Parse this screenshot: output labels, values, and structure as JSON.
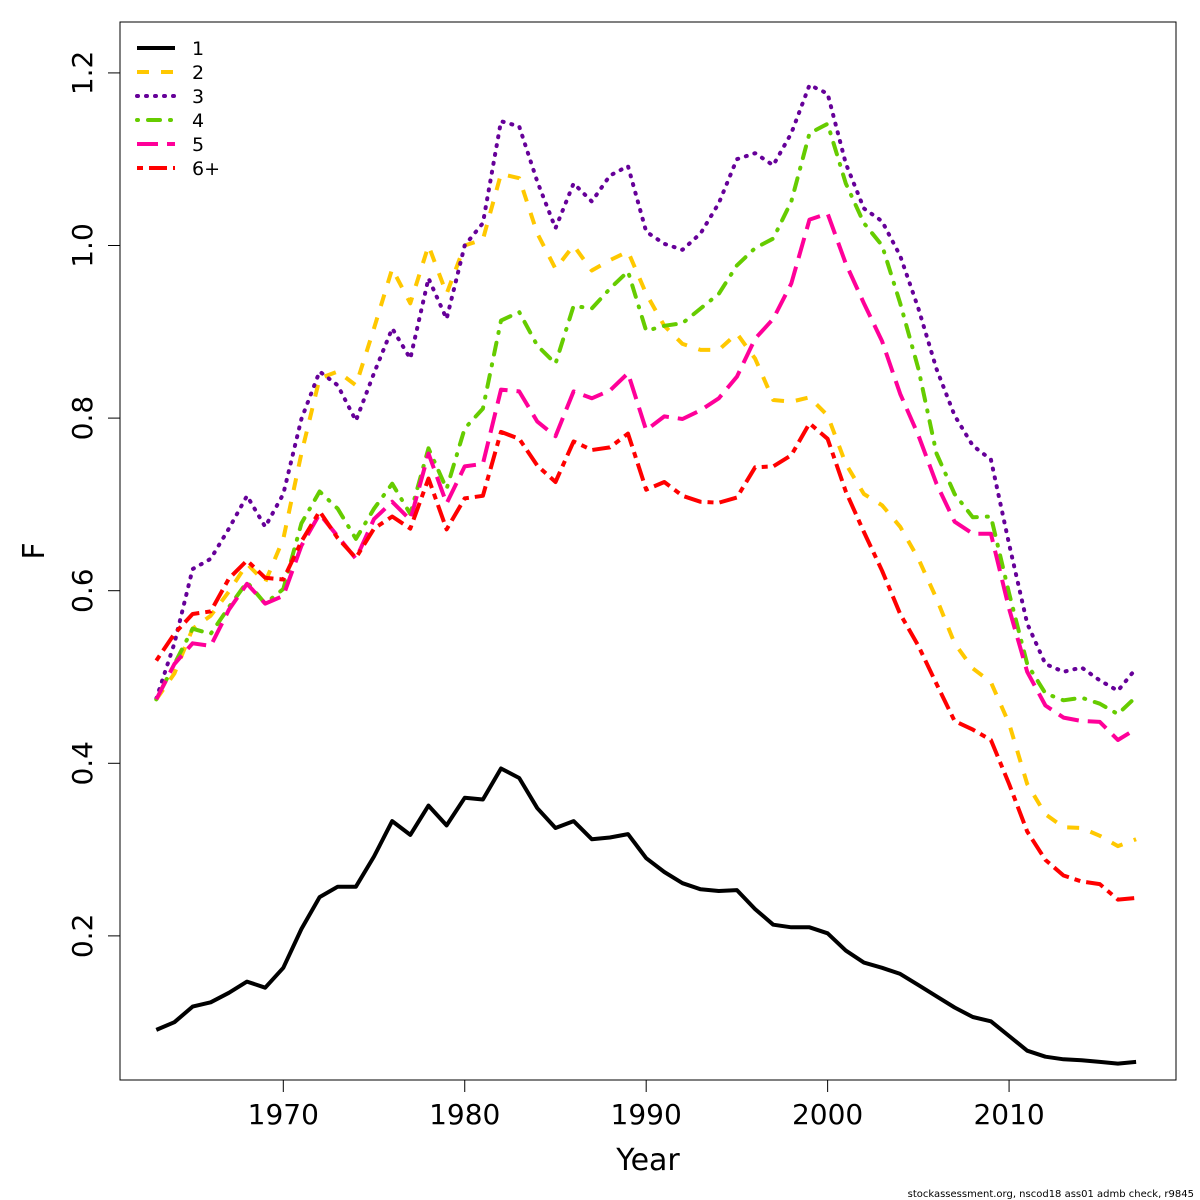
{
  "chart_data": {
    "type": "line",
    "title": "",
    "xlabel": "Year",
    "ylabel": "F",
    "xlim": [
      1961,
      2019.2
    ],
    "ylim": [
      0.033,
      1.259
    ],
    "xticks": [
      1970,
      1980,
      1990,
      2000,
      2010
    ],
    "yticks": [
      0.2,
      0.4,
      0.6,
      0.8,
      1.0,
      1.2
    ],
    "ytick_labels": [
      "0.2",
      "0.4",
      "0.6",
      "0.8",
      "1.0",
      "1.2"
    ],
    "legend_position": "top-left",
    "x_start": 1963,
    "series": [
      {
        "name": "1",
        "color": "#000000",
        "dash": "solid",
        "values": [
          0.091,
          0.1,
          0.118,
          0.123,
          0.134,
          0.147,
          0.14,
          0.163,
          0.208,
          0.245,
          0.257,
          0.257,
          0.292,
          0.333,
          0.317,
          0.351,
          0.328,
          0.36,
          0.358,
          0.394,
          0.383,
          0.348,
          0.325,
          0.333,
          0.312,
          0.314,
          0.318,
          0.29,
          0.274,
          0.261,
          0.254,
          0.252,
          0.253,
          0.231,
          0.213,
          0.21,
          0.21,
          0.203,
          0.183,
          0.169,
          0.163,
          0.156,
          0.143,
          0.13,
          0.117,
          0.106,
          0.101,
          0.084,
          0.067,
          0.06,
          0.057,
          0.056,
          0.054,
          0.052,
          0.054
        ]
      },
      {
        "name": "2",
        "color": "#FFC800",
        "dash": "dashed",
        "values": [
          0.474,
          0.504,
          0.556,
          0.571,
          0.599,
          0.631,
          0.61,
          0.66,
          0.759,
          0.846,
          0.854,
          0.838,
          0.904,
          0.973,
          0.933,
          1.0,
          0.944,
          1.0,
          1.007,
          1.083,
          1.078,
          1.014,
          0.973,
          1.0,
          0.971,
          0.983,
          0.993,
          0.944,
          0.907,
          0.886,
          0.879,
          0.879,
          0.898,
          0.869,
          0.821,
          0.819,
          0.824,
          0.803,
          0.747,
          0.712,
          0.699,
          0.674,
          0.637,
          0.591,
          0.539,
          0.51,
          0.494,
          0.446,
          0.376,
          0.341,
          0.326,
          0.325,
          0.316,
          0.304,
          0.312
        ]
      },
      {
        "name": "3",
        "color": "#660099",
        "dash": "dotted",
        "values": [
          0.475,
          0.539,
          0.625,
          0.637,
          0.672,
          0.71,
          0.674,
          0.712,
          0.799,
          0.854,
          0.838,
          0.797,
          0.852,
          0.904,
          0.869,
          0.962,
          0.915,
          1.0,
          1.026,
          1.144,
          1.138,
          1.074,
          1.02,
          1.072,
          1.051,
          1.081,
          1.092,
          1.016,
          1.002,
          0.995,
          1.014,
          1.049,
          1.1,
          1.107,
          1.093,
          1.13,
          1.186,
          1.176,
          1.095,
          1.043,
          1.028,
          0.988,
          0.927,
          0.857,
          0.803,
          0.768,
          0.752,
          0.654,
          0.562,
          0.515,
          0.506,
          0.511,
          0.496,
          0.484,
          0.51
        ]
      },
      {
        "name": "4",
        "color": "#66CC00",
        "dash": "dotdash",
        "values": [
          0.474,
          0.515,
          0.556,
          0.55,
          0.581,
          0.61,
          0.585,
          0.602,
          0.678,
          0.715,
          0.695,
          0.66,
          0.695,
          0.724,
          0.689,
          0.765,
          0.718,
          0.788,
          0.811,
          0.913,
          0.923,
          0.884,
          0.863,
          0.93,
          0.927,
          0.95,
          0.97,
          0.901,
          0.907,
          0.91,
          0.927,
          0.944,
          0.977,
          0.997,
          1.008,
          1.051,
          1.13,
          1.141,
          1.072,
          1.026,
          1.0,
          0.933,
          0.857,
          0.759,
          0.712,
          0.685,
          0.686,
          0.597,
          0.515,
          0.481,
          0.473,
          0.476,
          0.469,
          0.457,
          0.477
        ]
      },
      {
        "name": "5",
        "color": "#FF0099",
        "dash": "longdash",
        "values": [
          0.474,
          0.515,
          0.539,
          0.536,
          0.578,
          0.608,
          0.585,
          0.594,
          0.652,
          0.689,
          0.663,
          0.637,
          0.683,
          0.703,
          0.682,
          0.759,
          0.701,
          0.744,
          0.747,
          0.833,
          0.831,
          0.796,
          0.779,
          0.831,
          0.823,
          0.832,
          0.852,
          0.786,
          0.802,
          0.799,
          0.809,
          0.823,
          0.848,
          0.892,
          0.915,
          0.956,
          1.03,
          1.037,
          0.979,
          0.933,
          0.889,
          0.828,
          0.78,
          0.724,
          0.68,
          0.666,
          0.666,
          0.579,
          0.506,
          0.467,
          0.453,
          0.449,
          0.448,
          0.427,
          0.44
        ]
      },
      {
        "name": "6+",
        "color": "#FF0000",
        "dash": "twodash",
        "values": [
          0.519,
          0.55,
          0.573,
          0.576,
          0.614,
          0.635,
          0.615,
          0.613,
          0.657,
          0.692,
          0.661,
          0.638,
          0.672,
          0.686,
          0.672,
          0.73,
          0.671,
          0.707,
          0.71,
          0.784,
          0.776,
          0.745,
          0.726,
          0.773,
          0.763,
          0.766,
          0.782,
          0.717,
          0.726,
          0.71,
          0.703,
          0.702,
          0.708,
          0.743,
          0.744,
          0.757,
          0.794,
          0.776,
          0.715,
          0.668,
          0.623,
          0.573,
          0.536,
          0.492,
          0.449,
          0.439,
          0.427,
          0.376,
          0.321,
          0.288,
          0.27,
          0.263,
          0.26,
          0.242,
          0.244
        ]
      }
    ]
  },
  "footer": "stockassessment.org, nscod18 ass01 admb check, r9845"
}
